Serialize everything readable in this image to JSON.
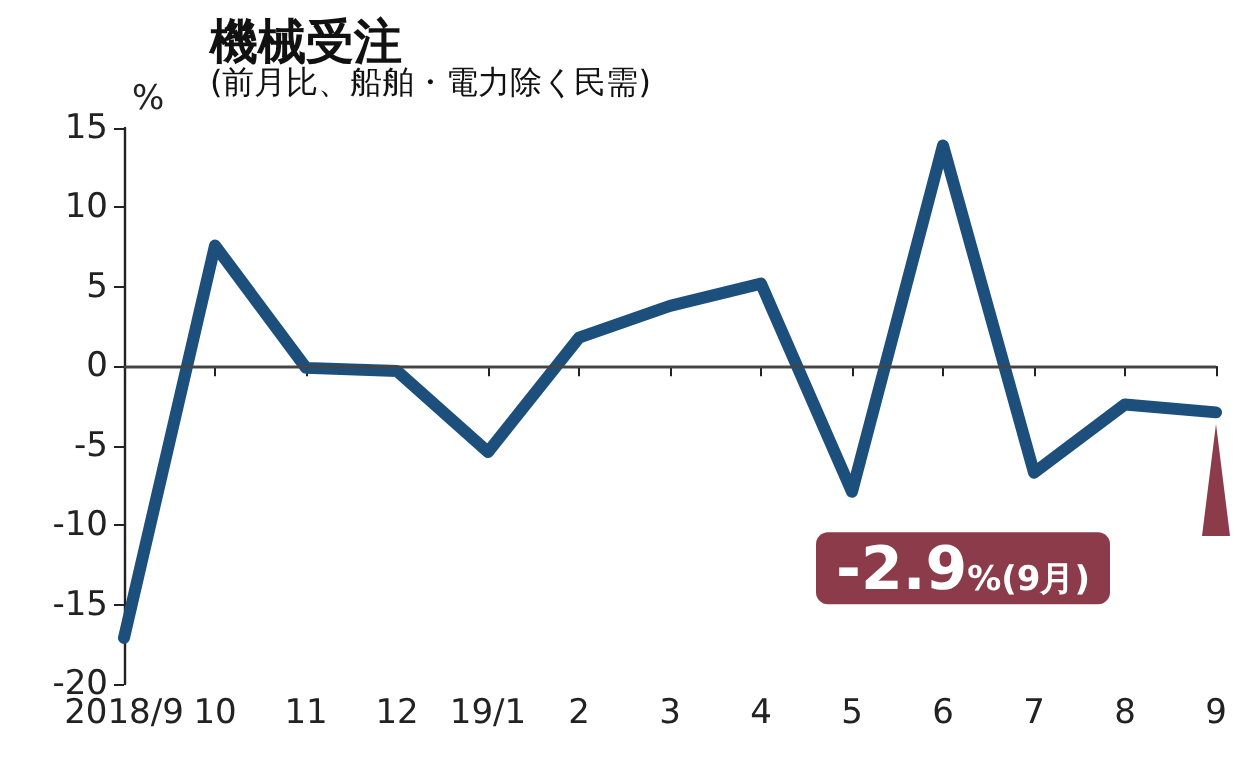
{
  "chart_data": {
    "type": "line",
    "title": "機械受注",
    "subtitle": "(前月比、船舶・電力除く民需)",
    "ylabel": "%",
    "categories": [
      "2018/9",
      "10",
      "11",
      "12",
      "19/1",
      "2",
      "3",
      "4",
      "5",
      "6",
      "7",
      "8",
      "9"
    ],
    "series": [
      {
        "color": "#1d4f7c",
        "values": [
          -17.1,
          7.6,
          -0.1,
          -0.3,
          -5.4,
          1.8,
          3.8,
          5.2,
          -7.9,
          13.9,
          -6.7,
          -2.4,
          -2.9
        ]
      }
    ],
    "ylim": [
      -20,
      15
    ],
    "yticks": [
      -20,
      -15,
      -10,
      -5,
      0,
      5,
      10,
      15
    ],
    "grid": false,
    "marker": "none",
    "line_style": "solid",
    "ref_lines": [
      {
        "axis": "y",
        "value": 0,
        "color": "#444444"
      }
    ],
    "annotations": [
      {
        "text": "-2.9%(9月)",
        "x": "9",
        "y": -2.9
      }
    ]
  }
}
